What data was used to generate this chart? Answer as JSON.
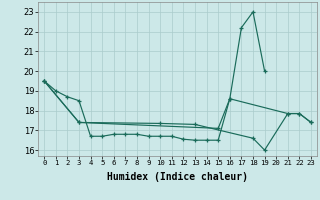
{
  "xlabel": "Humidex (Indice chaleur)",
  "line_color": "#1a6b5a",
  "bg_color": "#cce8e8",
  "grid_color": "#aacccc",
  "ylim": [
    15.7,
    23.5
  ],
  "xlim": [
    -0.5,
    23.5
  ],
  "yticks": [
    16,
    17,
    18,
    19,
    20,
    21,
    22,
    23
  ],
  "xticks": [
    0,
    1,
    2,
    3,
    4,
    5,
    6,
    7,
    8,
    9,
    10,
    11,
    12,
    13,
    14,
    15,
    16,
    17,
    18,
    19,
    20,
    21,
    22,
    23
  ],
  "line1_x": [
    0,
    1,
    2,
    3,
    4,
    5,
    6,
    7,
    8,
    9,
    10,
    11,
    12,
    13,
    14,
    15,
    16,
    17,
    18,
    19
  ],
  "line1_y": [
    19.5,
    19.0,
    18.7,
    18.5,
    16.7,
    16.7,
    16.8,
    16.8,
    16.8,
    16.7,
    16.7,
    16.7,
    16.55,
    16.5,
    16.5,
    16.5,
    18.6,
    22.2,
    23.0,
    20.0
  ],
  "line2_x": [
    0,
    3,
    15,
    16,
    21,
    22,
    23
  ],
  "line2_y": [
    19.5,
    17.4,
    17.1,
    18.6,
    17.85,
    17.85,
    17.4
  ],
  "line3_x": [
    0,
    3,
    10,
    13,
    18,
    19,
    21,
    22,
    23
  ],
  "line3_y": [
    19.5,
    17.4,
    17.35,
    17.3,
    16.6,
    16.0,
    17.85,
    17.85,
    17.4
  ]
}
